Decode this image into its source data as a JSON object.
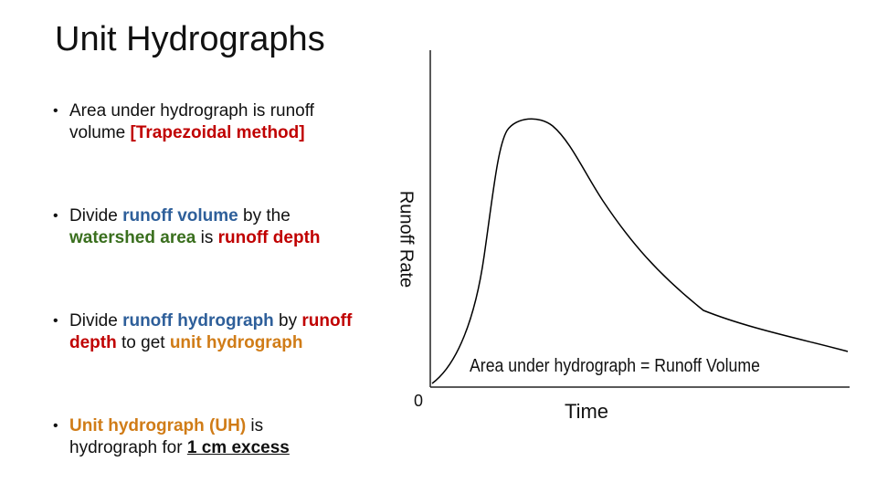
{
  "slide": {
    "title": "Unit Hydrographs"
  },
  "bullets": {
    "b1": {
      "t1": "Area under hydrograph is runoff volume ",
      "t2": "[Trapezoidal method]"
    },
    "b2": {
      "t1": "Divide ",
      "t2": "runoff volume",
      "t3": " by the ",
      "t4": "watershed area",
      "t5": " is ",
      "t6": "runoff depth"
    },
    "b3": {
      "t1": "Divide ",
      "t2": "runoff hydrograph",
      "t3": " by ",
      "t4": "runoff depth",
      "t5": " to get ",
      "t6": "unit hydrograph"
    },
    "b4": {
      "t1": "Unit hydrograph (UH)",
      "t2": " is hydrograph for ",
      "t3": "1 cm excess"
    }
  },
  "diagram": {
    "y_axis_label": "Runoff Rate",
    "x_axis_label": "Time",
    "origin_label": "0",
    "annotation": "Area under hydrograph = Runoff Volume",
    "curve_color": "#000000"
  }
}
